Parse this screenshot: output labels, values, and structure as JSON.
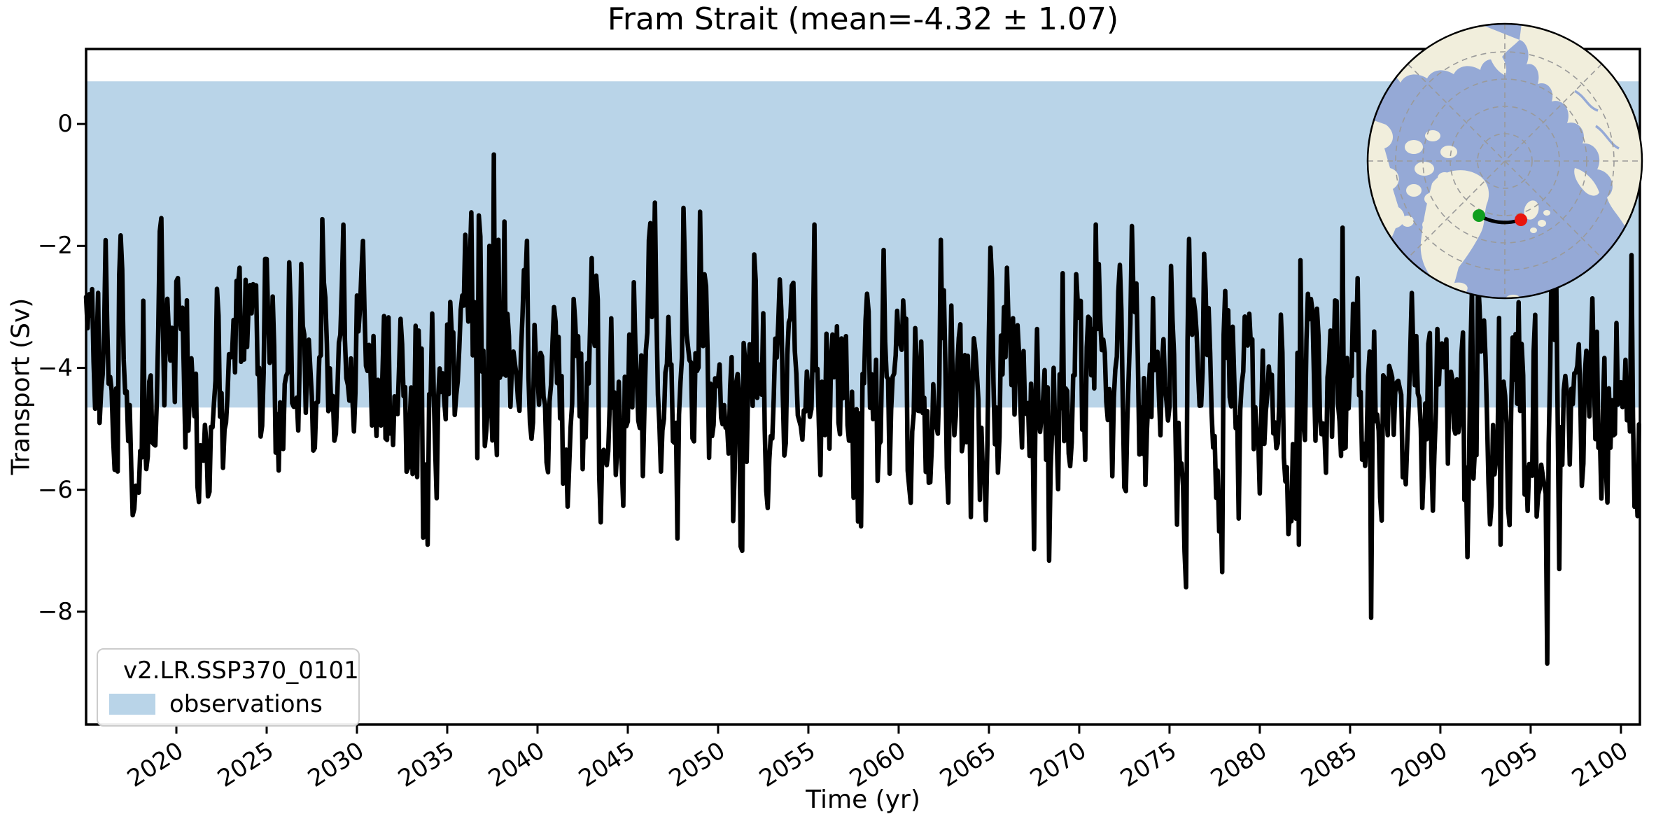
{
  "figure": {
    "title": "Fram Strait (mean=-4.32 ± 1.07)",
    "xlabel": "Time (yr)",
    "ylabel": "Transport (Sv)",
    "background": "#ffffff"
  },
  "legend": {
    "entries": [
      {
        "label": "v2.LR.SSP370_0101",
        "type": "line",
        "color": "#000000"
      },
      {
        "label": "observations",
        "type": "patch",
        "color": "#b9d4e8"
      }
    ]
  },
  "chart_data": {
    "type": "line",
    "title": "Fram Strait (mean=-4.32 ± 1.07)",
    "xlabel": "Time (yr)",
    "ylabel": "Transport (Sv)",
    "xlim": [
      2015.0,
      2101.05
    ],
    "ylim": [
      -9.85,
      1.23
    ],
    "grid": false,
    "x_ticks": [
      2020,
      2025,
      2030,
      2035,
      2040,
      2045,
      2050,
      2055,
      2060,
      2065,
      2070,
      2075,
      2080,
      2085,
      2090,
      2095,
      2100
    ],
    "x_tick_labels": [
      "2020",
      "2025",
      "2030",
      "2035",
      "2040",
      "2045",
      "2050",
      "2055",
      "2060",
      "2065",
      "2070",
      "2075",
      "2080",
      "2085",
      "2090",
      "2095",
      "2100"
    ],
    "y_ticks": [
      0,
      -2,
      -4,
      -6,
      -8
    ],
    "y_tick_labels": [
      "0",
      "−2",
      "−4",
      "−6",
      "−8"
    ],
    "observations_band": {
      "label": "observations",
      "top": 0.7,
      "bottom": -4.65,
      "color": "#b9d4e8"
    },
    "series": [
      {
        "name": "v2.LR.SSP370_0101",
        "color": "#000000",
        "linewidth": 6.5,
        "stats": {
          "mean": -4.32,
          "std": 1.07
        },
        "frequency": "monthly",
        "spec": {
          "seed": 77,
          "x_start": 2015.0,
          "x_end": 2101.0,
          "points_per_year": 12,
          "mean": -4.32,
          "trend": -0.45,
          "ar": 0.45,
          "sigma_innov": 0.85,
          "seasonal_amp": 0.4,
          "soft_min": -7.1,
          "soft_max": -1.55,
          "overshoot_keep": 0.45
        },
        "key_points": [
          {
            "x": 2015.08,
            "y": -3.35
          },
          {
            "x": 2033.9,
            "y": -6.9
          },
          {
            "x": 2036.33,
            "y": -1.45
          },
          {
            "x": 2036.75,
            "y": -1.5
          },
          {
            "x": 2037.3,
            "y": -2.0
          },
          {
            "x": 2037.58,
            "y": -0.5
          },
          {
            "x": 2037.83,
            "y": -1.9
          },
          {
            "x": 2038.16,
            "y": -1.6
          },
          {
            "x": 2043.0,
            "y": -2.2
          },
          {
            "x": 2047.75,
            "y": -6.8
          },
          {
            "x": 2051.3,
            "y": -7.0
          },
          {
            "x": 2055.3,
            "y": -1.65
          },
          {
            "x": 2057.9,
            "y": -6.6
          },
          {
            "x": 2062.3,
            "y": -1.9
          },
          {
            "x": 2064.8,
            "y": -6.5
          },
          {
            "x": 2070.9,
            "y": -1.65
          },
          {
            "x": 2075.9,
            "y": -7.6
          },
          {
            "x": 2077.9,
            "y": -7.35
          },
          {
            "x": 2082.2,
            "y": -6.9
          },
          {
            "x": 2084.6,
            "y": -1.7
          },
          {
            "x": 2086.2,
            "y": -8.1
          },
          {
            "x": 2093.3,
            "y": -6.9
          },
          {
            "x": 2095.9,
            "y": -8.85
          },
          {
            "x": 2096.6,
            "y": -7.3
          },
          {
            "x": 2100.6,
            "y": -2.15
          }
        ]
      }
    ]
  },
  "inset_map": {
    "description": "North polar stereographic map showing the Fram Strait transect",
    "ocean_color": "#95a9d6",
    "land_color": "#f1eedc",
    "graticule_color": "#9a9a9a",
    "boundary_color": "#000000",
    "transect_color": "#000000",
    "start_marker_color": "#109e1e",
    "end_marker_color": "#e9150d"
  }
}
